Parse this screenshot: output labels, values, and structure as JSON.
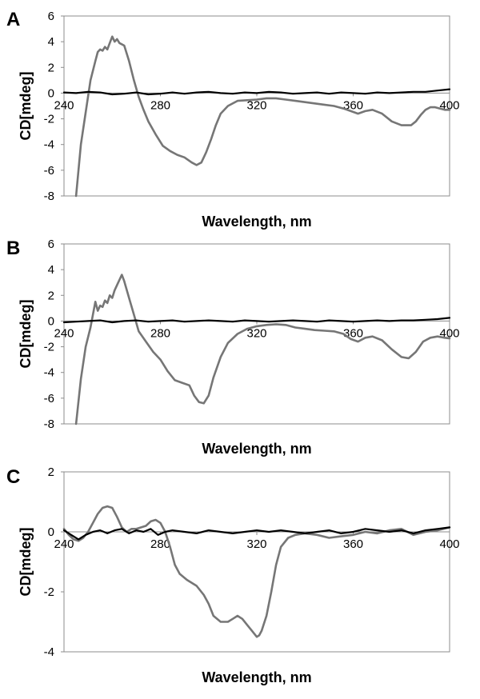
{
  "chart_data": [
    {
      "type": "line",
      "panel": "A",
      "xlabel": "Wavelength, nm",
      "ylabel": "CD[mdeg]",
      "xlim": [
        240,
        400
      ],
      "ylim": [
        -8,
        6
      ],
      "xticks": [
        240,
        280,
        320,
        360,
        400
      ],
      "yticks": [
        -8,
        -6,
        -4,
        -2,
        0,
        2,
        4,
        6
      ],
      "series": [
        {
          "name": "gray",
          "color": "#767676",
          "x": [
            245,
            247,
            249,
            251,
            253,
            254,
            255,
            256,
            257,
            258,
            259,
            260,
            261,
            262,
            263,
            265,
            267,
            269,
            271,
            273,
            275,
            278,
            281,
            284,
            287,
            290,
            293,
            295,
            297,
            299,
            301,
            303,
            305,
            308,
            312,
            316,
            320,
            324,
            328,
            332,
            336,
            340,
            344,
            348,
            352,
            356,
            359,
            362,
            365,
            368,
            372,
            376,
            380,
            384,
            386,
            388,
            390,
            392,
            394,
            396,
            398,
            400
          ],
          "y": [
            -8,
            -4,
            -1.5,
            1,
            2.5,
            3.2,
            3.4,
            3.3,
            3.6,
            3.4,
            3.9,
            4.4,
            4.0,
            4.2,
            3.9,
            3.7,
            2.5,
            1,
            -0.3,
            -1.3,
            -2.2,
            -3.2,
            -4.1,
            -4.5,
            -4.8,
            -5.0,
            -5.4,
            -5.6,
            -5.4,
            -4.6,
            -3.6,
            -2.5,
            -1.6,
            -1.0,
            -0.6,
            -0.55,
            -0.5,
            -0.4,
            -0.4,
            -0.5,
            -0.6,
            -0.7,
            -0.8,
            -0.9,
            -1.0,
            -1.2,
            -1.4,
            -1.6,
            -1.4,
            -1.3,
            -1.6,
            -2.2,
            -2.5,
            -2.5,
            -2.2,
            -1.7,
            -1.3,
            -1.1,
            -1.1,
            -1.2,
            -1.3,
            -1.3
          ]
        },
        {
          "name": "black",
          "color": "#000000",
          "x": [
            240,
            245,
            250,
            255,
            260,
            265,
            270,
            275,
            280,
            285,
            290,
            295,
            300,
            305,
            310,
            315,
            320,
            325,
            330,
            335,
            340,
            345,
            350,
            355,
            360,
            365,
            370,
            375,
            380,
            385,
            390,
            395,
            400
          ],
          "y": [
            0.05,
            0,
            0.1,
            0.05,
            -0.1,
            -0.05,
            0.05,
            -0.1,
            -0.05,
            0.05,
            -0.05,
            0.05,
            0.1,
            0,
            -0.05,
            0.05,
            0,
            0.1,
            0.05,
            -0.05,
            0,
            0.05,
            -0.05,
            0.05,
            0,
            -0.05,
            0.05,
            0,
            0.05,
            0.1,
            0.1,
            0.2,
            0.3
          ]
        }
      ]
    },
    {
      "type": "line",
      "panel": "B",
      "xlabel": "Wavelength, nm",
      "ylabel": "CD[mdeg]",
      "xlim": [
        240,
        400
      ],
      "ylim": [
        -8,
        6
      ],
      "xticks": [
        240,
        280,
        320,
        360,
        400
      ],
      "yticks": [
        -8,
        -6,
        -4,
        -2,
        0,
        2,
        4,
        6
      ],
      "series": [
        {
          "name": "gray",
          "color": "#767676",
          "x": [
            245,
            247,
            249,
            251,
            253,
            254,
            255,
            256,
            257,
            258,
            259,
            260,
            261,
            262,
            263,
            264,
            265,
            267,
            269,
            271,
            274,
            277,
            280,
            283,
            286,
            289,
            292,
            294,
            296,
            298,
            300,
            302,
            305,
            308,
            312,
            316,
            320,
            324,
            328,
            332,
            336,
            340,
            344,
            348,
            352,
            356,
            359,
            362,
            365,
            368,
            372,
            376,
            380,
            383,
            386,
            389,
            392,
            395,
            398,
            400
          ],
          "y": [
            -8,
            -4.5,
            -2,
            -0.5,
            1.5,
            0.8,
            1.2,
            1.1,
            1.6,
            1.4,
            2.0,
            1.8,
            2.4,
            2.8,
            3.2,
            3.6,
            3.1,
            1.8,
            0.5,
            -0.8,
            -1.6,
            -2.4,
            -3.0,
            -3.9,
            -4.6,
            -4.8,
            -5.0,
            -5.8,
            -6.3,
            -6.4,
            -5.8,
            -4.4,
            -2.8,
            -1.7,
            -1.0,
            -0.6,
            -0.4,
            -0.3,
            -0.25,
            -0.3,
            -0.5,
            -0.6,
            -0.7,
            -0.75,
            -0.8,
            -1.0,
            -1.4,
            -1.6,
            -1.3,
            -1.2,
            -1.5,
            -2.2,
            -2.8,
            -2.9,
            -2.4,
            -1.6,
            -1.3,
            -1.2,
            -1.3,
            -1.35
          ]
        },
        {
          "name": "black",
          "color": "#000000",
          "x": [
            240,
            245,
            250,
            255,
            260,
            265,
            270,
            275,
            280,
            285,
            290,
            295,
            300,
            305,
            310,
            315,
            320,
            325,
            330,
            335,
            340,
            345,
            350,
            355,
            360,
            365,
            370,
            375,
            380,
            385,
            390,
            395,
            400
          ],
          "y": [
            -0.1,
            -0.05,
            0,
            0.05,
            -0.1,
            0,
            0.05,
            -0.05,
            0,
            0.05,
            -0.05,
            0,
            0.05,
            0,
            -0.05,
            0.05,
            0,
            -0.05,
            0,
            0.05,
            0,
            -0.05,
            0.05,
            0,
            -0.05,
            0,
            0.05,
            0,
            0.05,
            0.05,
            0.1,
            0.15,
            0.25
          ]
        }
      ]
    },
    {
      "type": "line",
      "panel": "C",
      "xlabel": "Wavelength, nm",
      "ylabel": "CD[mdeg]",
      "xlim": [
        240,
        400
      ],
      "ylim": [
        -4,
        2
      ],
      "xticks": [
        240,
        280,
        320,
        360,
        400
      ],
      "yticks": [
        -4,
        -2,
        0,
        2
      ],
      "series": [
        {
          "name": "gray",
          "color": "#767676",
          "x": [
            240,
            242,
            244,
            246,
            248,
            250,
            252,
            254,
            256,
            258,
            260,
            262,
            264,
            266,
            268,
            270,
            272,
            274,
            276,
            278,
            280,
            282,
            284,
            286,
            288,
            291,
            295,
            298,
            300,
            302,
            305,
            308,
            310,
            312,
            314,
            316,
            318,
            320,
            321,
            322,
            324,
            326,
            328,
            330,
            333,
            336,
            340,
            345,
            350,
            355,
            360,
            365,
            370,
            375,
            380,
            385,
            390,
            395,
            400
          ],
          "y": [
            0.1,
            -0.1,
            -0.25,
            -0.3,
            -0.2,
            0,
            0.3,
            0.6,
            0.8,
            0.85,
            0.8,
            0.5,
            0.15,
            0,
            0.1,
            0.1,
            0.15,
            0.2,
            0.35,
            0.4,
            0.3,
            0,
            -0.5,
            -1.1,
            -1.4,
            -1.6,
            -1.8,
            -2.1,
            -2.4,
            -2.8,
            -3.0,
            -3.0,
            -2.9,
            -2.8,
            -2.9,
            -3.1,
            -3.3,
            -3.5,
            -3.45,
            -3.3,
            -2.8,
            -2.0,
            -1.1,
            -0.5,
            -0.2,
            -0.1,
            -0.05,
            -0.1,
            -0.2,
            -0.15,
            -0.1,
            0,
            -0.05,
            0.05,
            0.1,
            -0.1,
            0,
            0.05,
            0.15
          ]
        },
        {
          "name": "black",
          "color": "#000000",
          "x": [
            240,
            243,
            246,
            249,
            252,
            255,
            258,
            261,
            264,
            267,
            270,
            273,
            276,
            279,
            282,
            285,
            290,
            295,
            300,
            305,
            310,
            315,
            320,
            325,
            330,
            335,
            340,
            345,
            350,
            355,
            360,
            365,
            370,
            375,
            380,
            385,
            390,
            395,
            400
          ],
          "y": [
            0.05,
            -0.1,
            -0.25,
            -0.1,
            0,
            0.05,
            -0.05,
            0.05,
            0.1,
            -0.05,
            0.05,
            0,
            0.1,
            -0.1,
            0,
            0.05,
            0,
            -0.05,
            0.05,
            0,
            -0.05,
            0,
            0.05,
            0,
            0.05,
            0,
            -0.05,
            0,
            0.05,
            -0.05,
            0,
            0.1,
            0.05,
            0,
            0.05,
            -0.05,
            0.05,
            0.1,
            0.15
          ]
        }
      ]
    }
  ]
}
